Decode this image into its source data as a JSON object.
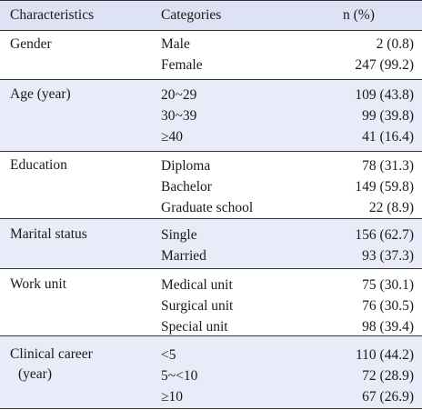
{
  "header": {
    "col1": "Characteristics",
    "col2": "Categories",
    "col3": "n (%)"
  },
  "groups": [
    {
      "label": [
        "Gender"
      ],
      "rows": [
        {
          "category": "Male",
          "value": "2 (0.8)"
        },
        {
          "category": "Female",
          "value": "247 (99.2)"
        }
      ]
    },
    {
      "label": [
        "Age (year)"
      ],
      "rows": [
        {
          "category": "20~29",
          "value": "109 (43.8)"
        },
        {
          "category": "30~39",
          "value": "99 (39.8)"
        },
        {
          "category": "≥40",
          "value": "41 (16.4)"
        }
      ]
    },
    {
      "label": [
        "Education"
      ],
      "rows": [
        {
          "category": "Diploma",
          "value": "78 (31.3)"
        },
        {
          "category": "Bachelor",
          "value": "149 (59.8)"
        },
        {
          "category": "Graduate school",
          "value": "22 (8.9)"
        }
      ]
    },
    {
      "label": [
        "Marital status"
      ],
      "rows": [
        {
          "category": "Single",
          "value": "156 (62.7)"
        },
        {
          "category": "Married",
          "value": "93 (37.3)"
        }
      ]
    },
    {
      "label": [
        "Work unit"
      ],
      "rows": [
        {
          "category": "Medical unit",
          "value": "75 (30.1)"
        },
        {
          "category": "Surgical unit",
          "value": "76 (30.5)"
        },
        {
          "category": "Special unit",
          "value": "98 (39.4)"
        }
      ]
    },
    {
      "label": [
        "Clinical career",
        "(year)"
      ],
      "rows": [
        {
          "category": "<5",
          "value": "110 (44.2)"
        },
        {
          "category": "5~<10",
          "value": "72 (28.9)"
        },
        {
          "category": "≥10",
          "value": "67 (26.9)"
        }
      ]
    }
  ]
}
